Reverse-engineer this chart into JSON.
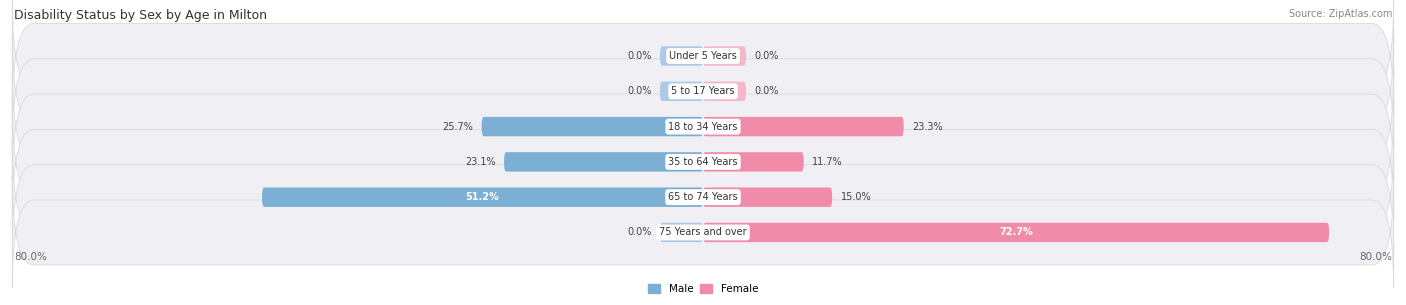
{
  "title": "Disability Status by Sex by Age in Milton",
  "source": "Source: ZipAtlas.com",
  "categories": [
    "Under 5 Years",
    "5 to 17 Years",
    "18 to 34 Years",
    "35 to 64 Years",
    "65 to 74 Years",
    "75 Years and over"
  ],
  "male_values": [
    0.0,
    0.0,
    25.7,
    23.1,
    51.2,
    0.0
  ],
  "female_values": [
    0.0,
    0.0,
    23.3,
    11.7,
    15.0,
    72.7
  ],
  "male_color": "#7bafd4",
  "female_color": "#f08caa",
  "male_color_light": "#adc9e8",
  "female_color_light": "#f5b8c8",
  "row_bg_color": "#f0f0f4",
  "row_edge_color": "#d8d8e0",
  "x_min": -80.0,
  "x_max": 80.0,
  "stub_size": 5.0,
  "title_fontsize": 9,
  "source_fontsize": 7,
  "label_fontsize": 7.5,
  "category_fontsize": 7,
  "value_fontsize": 7
}
